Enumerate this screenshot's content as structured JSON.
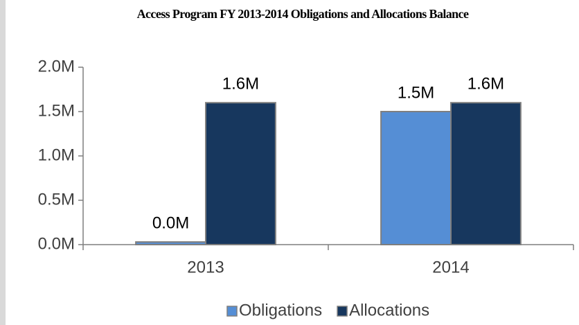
{
  "chart_data": {
    "type": "bar",
    "title": "Access Program FY 2013-2014 Obligations and Allocations Balance",
    "categories": [
      "2013",
      "2014"
    ],
    "series": [
      {
        "name": "Obligations",
        "color": "#558ed5",
        "values": [
          0.03,
          1.5
        ],
        "value_labels": [
          "0.0M",
          "1.5M"
        ]
      },
      {
        "name": "Allocations",
        "color": "#17375e",
        "values": [
          1.6,
          1.6
        ],
        "value_labels": [
          "1.6M",
          "1.6M"
        ]
      }
    ],
    "ylim": [
      0,
      2
    ],
    "yticks": [
      {
        "value": 0,
        "label": "0.0M"
      },
      {
        "value": 0.5,
        "label": "0.5M"
      },
      {
        "value": 1,
        "label": "1.0M"
      },
      {
        "value": 1.5,
        "label": "1.5M"
      },
      {
        "value": 2,
        "label": "2.0M"
      }
    ],
    "legend": "bottom"
  }
}
